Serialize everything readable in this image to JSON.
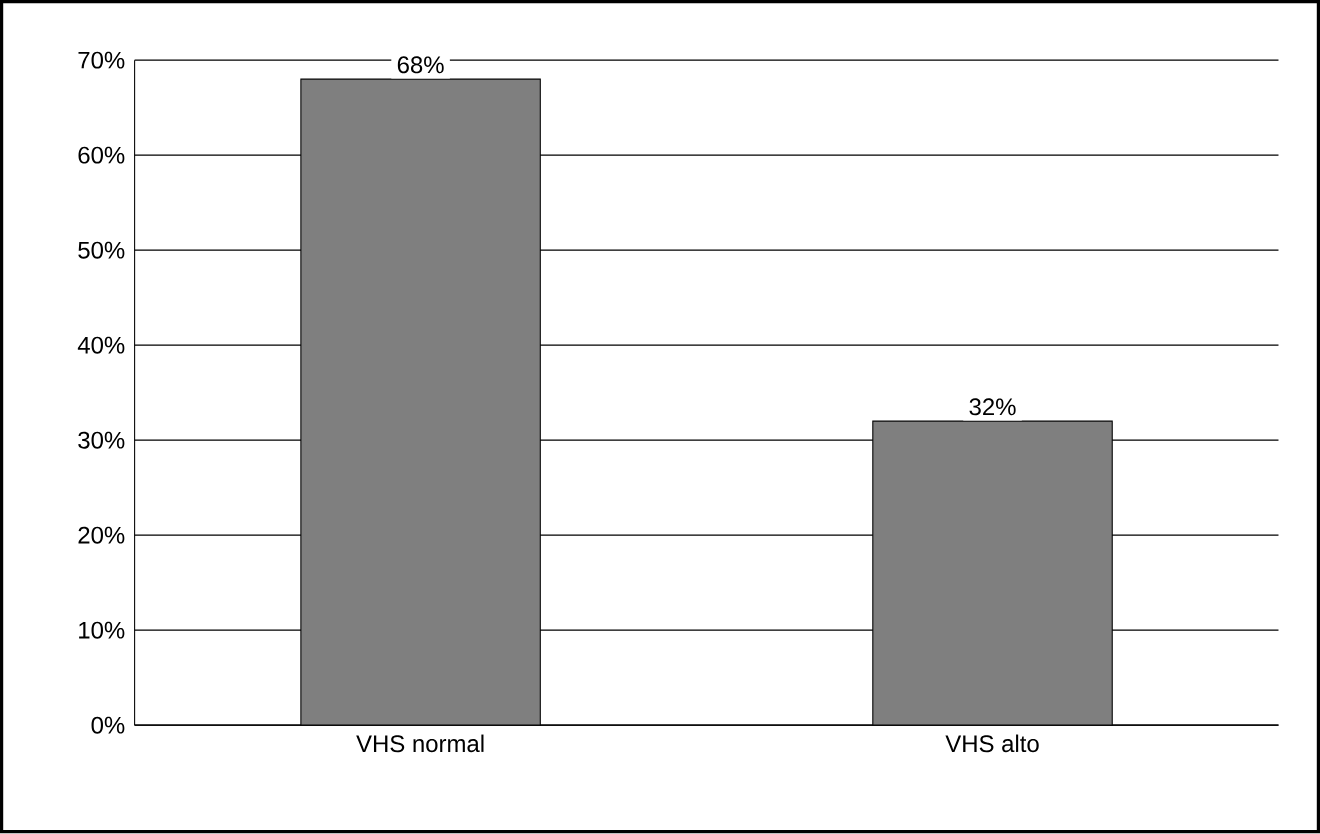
{
  "chart_data": {
    "type": "bar",
    "categories": [
      "VHS normal",
      "VHS alto"
    ],
    "values": [
      68,
      32
    ],
    "value_labels": [
      "68%",
      "32%"
    ],
    "color": "#7f7f7f",
    "ylim": [
      0,
      70
    ],
    "yticks": [
      {
        "value": 0,
        "label": "0%"
      },
      {
        "value": 10,
        "label": "10%"
      },
      {
        "value": 20,
        "label": "20%"
      },
      {
        "value": 30,
        "label": "30%"
      },
      {
        "value": 40,
        "label": "40%"
      },
      {
        "value": 50,
        "label": "50%"
      },
      {
        "value": 60,
        "label": "60%"
      },
      {
        "value": 70,
        "label": "70%"
      }
    ],
    "grid": "y"
  }
}
